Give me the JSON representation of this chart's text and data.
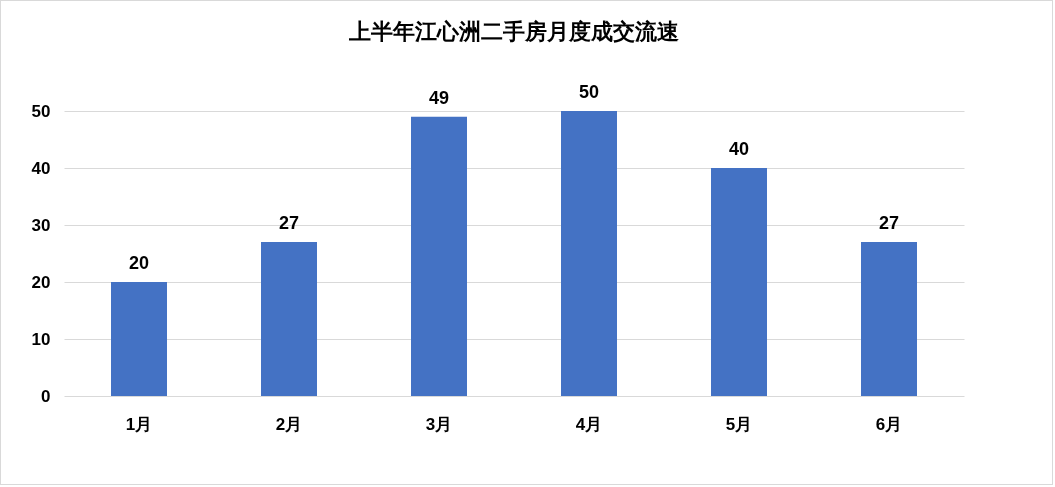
{
  "chart_data": {
    "type": "bar",
    "title": "上半年江心洲二手房月度成交流速",
    "categories": [
      "1月",
      "2月",
      "3月",
      "4月",
      "5月",
      "6月"
    ],
    "values": [
      20,
      27,
      49,
      50,
      40,
      27
    ],
    "color": "#4472c4",
    "ylim": [
      0,
      50
    ],
    "yticks": [
      0,
      10,
      20,
      30,
      40,
      50
    ],
    "grid": "y",
    "data_labels": true
  }
}
